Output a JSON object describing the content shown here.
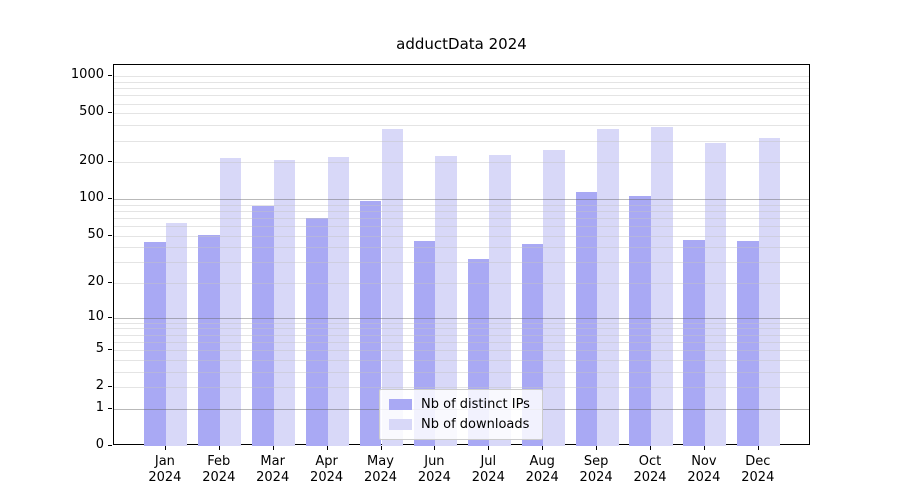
{
  "figure_title": "adductData 2024",
  "chart_data": {
    "type": "bar",
    "title": "adductData 2024",
    "categories": [
      "Jan",
      "Feb",
      "Mar",
      "Apr",
      "May",
      "Jun",
      "Jul",
      "Aug",
      "Sep",
      "Oct",
      "Nov",
      "Dec"
    ],
    "x_year_label": "2024",
    "series": [
      {
        "name": "Nb of distinct IPs",
        "color": "#a9a9f4",
        "values": [
          44,
          51,
          87,
          70,
          96,
          45,
          32,
          43,
          114,
          106,
          46,
          45
        ]
      },
      {
        "name": "Nb of downloads",
        "color": "#d8d8f8",
        "values": [
          64,
          215,
          207,
          222,
          375,
          226,
          231,
          251,
          370,
          391,
          289,
          318
        ]
      }
    ],
    "y_axis": {
      "scale": "log10(1+x)",
      "tick_values": [
        0,
        1,
        2,
        5,
        10,
        20,
        50,
        100,
        200,
        500,
        1000
      ],
      "major_grid_values": [
        1,
        10,
        100
      ],
      "minor_grid_values": [
        2,
        3,
        4,
        5,
        6,
        7,
        8,
        9,
        20,
        30,
        40,
        50,
        60,
        70,
        80,
        90,
        200,
        300,
        400,
        500,
        600,
        700,
        800,
        900,
        1000
      ],
      "ylim_top": 1240
    },
    "grid": true,
    "legend": {
      "position": "inside-bottom-center",
      "entries": [
        "Nb of distinct IPs",
        "Nb of downloads"
      ]
    }
  }
}
